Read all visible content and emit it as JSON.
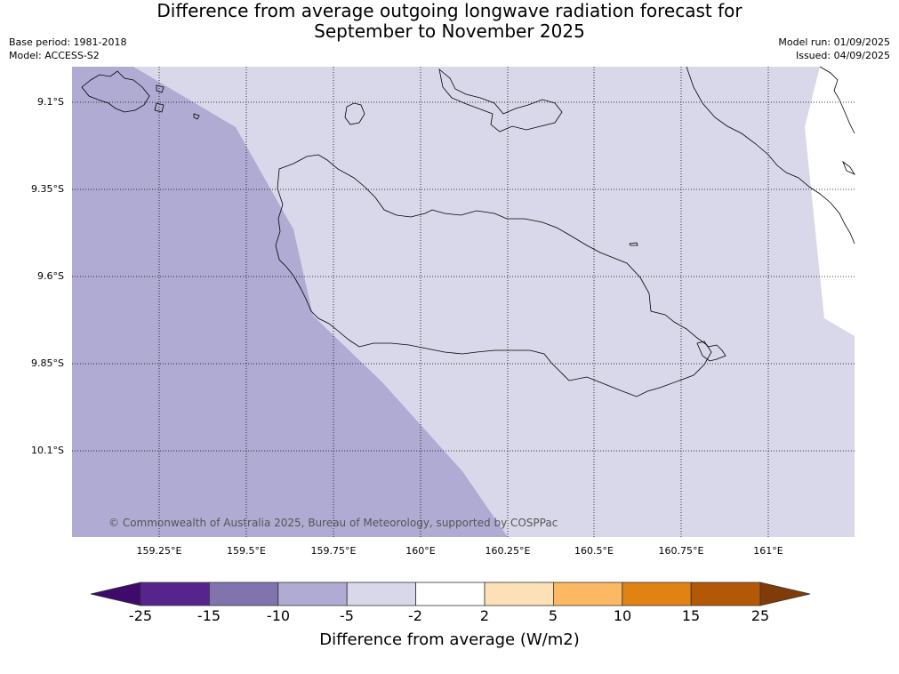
{
  "title": {
    "line1": "Difference from average outgoing longwave radiation forecast for",
    "line2": "September to November 2025"
  },
  "meta": {
    "base_period": "Base period: 1981-2018",
    "model": "Model: ACCESS-S2",
    "model_run": "Model run: 01/09/2025",
    "issued": "Issued: 04/09/2025"
  },
  "map": {
    "lat_labels": [
      "9.1°S",
      "9.35°S",
      "9.6°S",
      "9.85°S",
      "10.1°S"
    ],
    "lon_labels": [
      "159.25°E",
      "159.5°E",
      "159.75°E",
      "160°E",
      "160.25°E",
      "160.5°E",
      "160.75°E",
      "161°E"
    ],
    "copyright": "© Commonwealth of Australia 2025, Bureau of Meteorology, supported by COSPPac",
    "shading_colors": {
      "-10 to -5": "#b0abd3",
      "-5 to -2": "#d8d8ea",
      "-2 to 2": "#ffffff"
    }
  },
  "colorbar": {
    "title": "Difference from average (W/m2)",
    "labels": [
      "-25",
      "-15",
      "-10",
      "-5",
      "-2",
      "2",
      "5",
      "10",
      "15",
      "25"
    ],
    "colors": [
      "#3f0a6c",
      "#56248c",
      "#8073ae",
      "#b0abd3",
      "#d8d8ea",
      "#ffffff",
      "#fee0b6",
      "#fdb863",
      "#e08214",
      "#b35806",
      "#7f3b08"
    ]
  }
}
